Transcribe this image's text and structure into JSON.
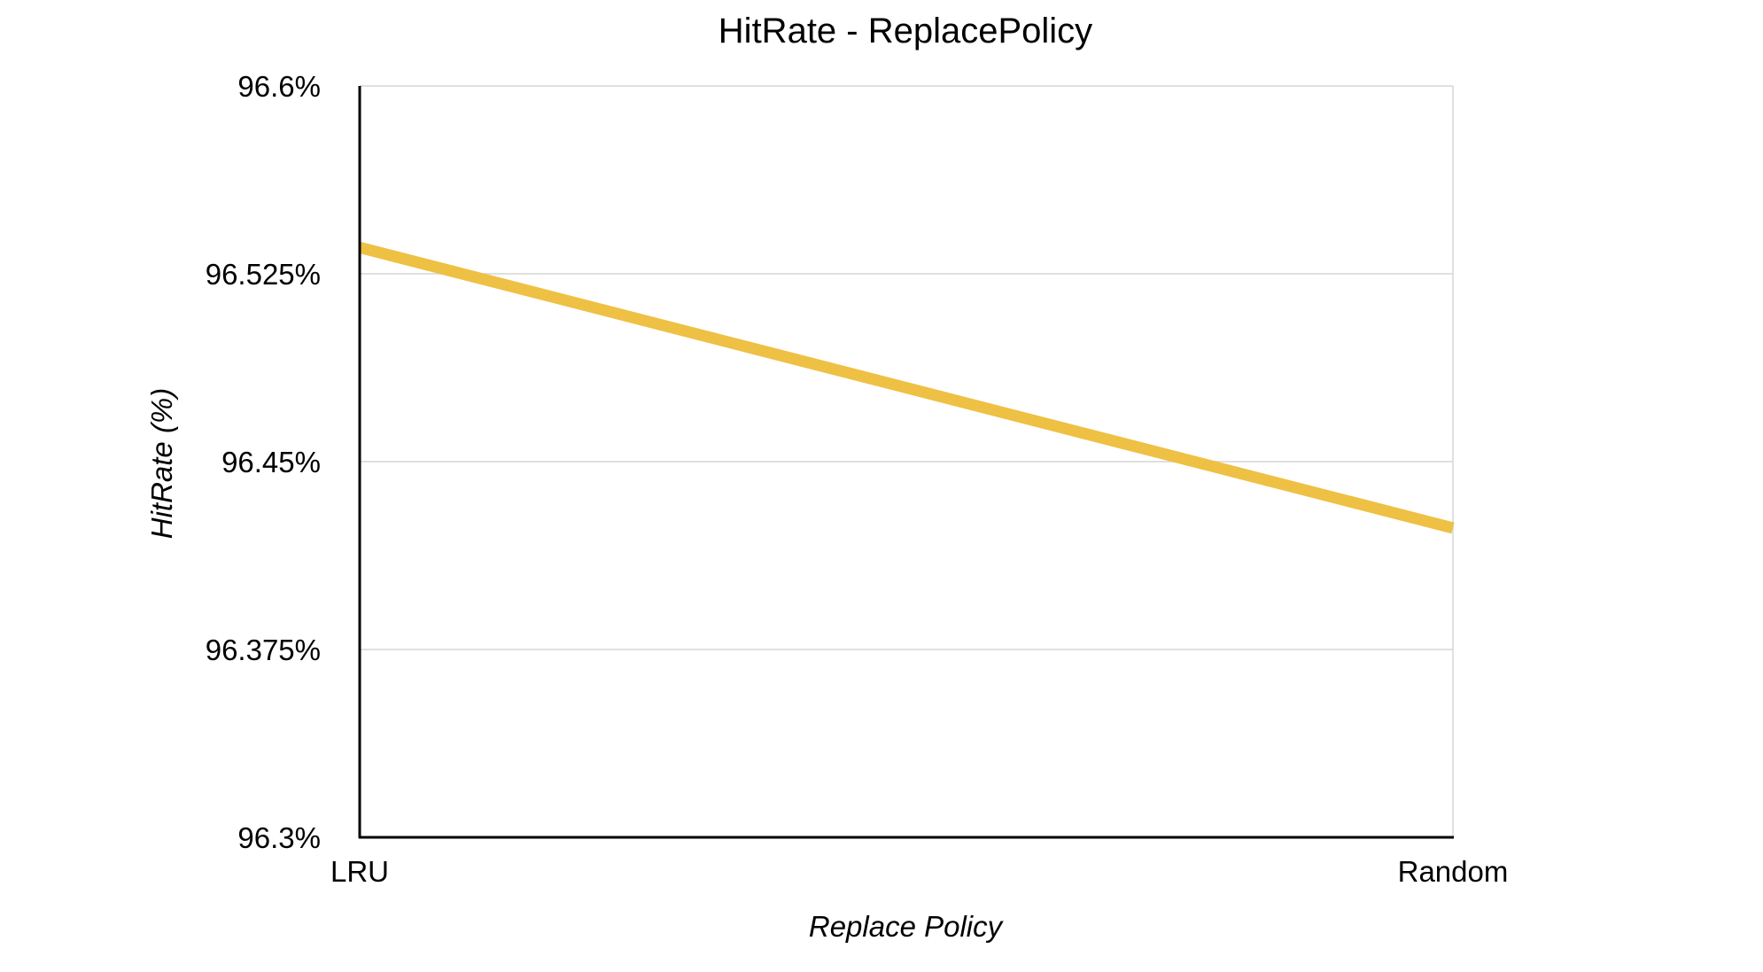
{
  "chart_data": {
    "type": "line",
    "title": "HitRate - ReplacePolicy",
    "xlabel": "Replace Policy",
    "ylabel": "HitRate (%)",
    "categories": [
      "LRU",
      "Random"
    ],
    "series": [
      {
        "values": [
          96.5355,
          96.4235
        ],
        "color": "#eec044"
      }
    ],
    "ylim": [
      96.3,
      96.6
    ],
    "yticks": [
      96.3,
      96.375,
      96.45,
      96.525,
      96.6
    ],
    "ytick_labels": [
      "96.3%",
      "96.375%",
      "96.45%",
      "96.525%",
      "96.6%"
    ],
    "grid": "horizontal",
    "colors": {
      "line": "#eec044",
      "grid": "#d6d6d6",
      "axis": "#000000"
    }
  }
}
